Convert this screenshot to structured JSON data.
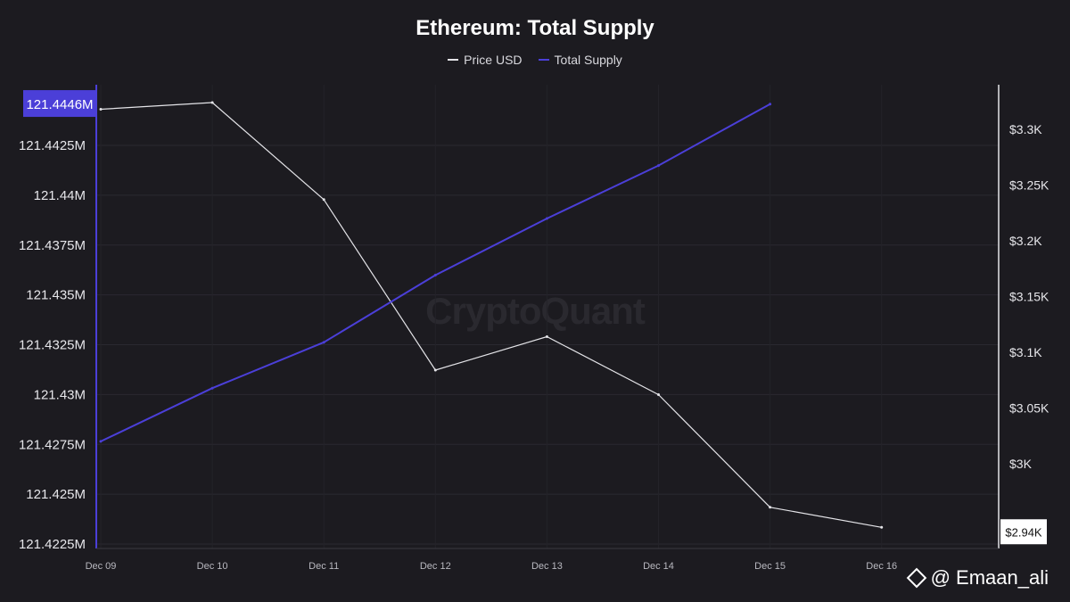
{
  "chart_data": {
    "type": "line",
    "title": "Ethereum: Total Supply",
    "categories": [
      "Dec 09",
      "Dec 10",
      "Dec 11",
      "Dec 12",
      "Dec 13",
      "Dec 14",
      "Dec 15",
      "Dec 16"
    ],
    "series": [
      {
        "name": "Price USD",
        "axis": "right",
        "color": "#e4e4e8",
        "values": [
          3318,
          3324,
          3237,
          3084,
          3114,
          3062,
          2961,
          2943
        ]
      },
      {
        "name": "Total Supply",
        "axis": "left",
        "color": "#4b3fd8",
        "values": [
          121.42765,
          121.43032,
          121.43262,
          121.43599,
          121.43883,
          121.44149,
          121.44457,
          null
        ]
      }
    ],
    "yleft": {
      "ticks": [
        {
          "value": 121.4225,
          "label": "121.4225M"
        },
        {
          "value": 121.425,
          "label": "121.425M"
        },
        {
          "value": 121.4275,
          "label": "121.4275M"
        },
        {
          "value": 121.43,
          "label": "121.43M"
        },
        {
          "value": 121.4325,
          "label": "121.4325M"
        },
        {
          "value": 121.435,
          "label": "121.435M"
        },
        {
          "value": 121.4375,
          "label": "121.4375M"
        },
        {
          "value": 121.44,
          "label": "121.44M"
        },
        {
          "value": 121.4425,
          "label": "121.4425M"
        }
      ],
      "highlight": {
        "value": 121.4446,
        "label": "121.4446M"
      }
    },
    "yright": {
      "ticks": [
        {
          "value": 3000,
          "label": "$3K"
        },
        {
          "value": 3050,
          "label": "$3.05K"
        },
        {
          "value": 3100,
          "label": "$3.1K"
        },
        {
          "value": 3150,
          "label": "$3.15K"
        },
        {
          "value": 3200,
          "label": "$3.2K"
        },
        {
          "value": 3250,
          "label": "$3.25K"
        },
        {
          "value": 3300,
          "label": "$3.3K"
        }
      ],
      "highlight": {
        "value": 2943,
        "label": "$2.94K"
      }
    },
    "grid": true
  },
  "watermark": "CryptoQuant",
  "attribution": "@ Emaan_ali"
}
